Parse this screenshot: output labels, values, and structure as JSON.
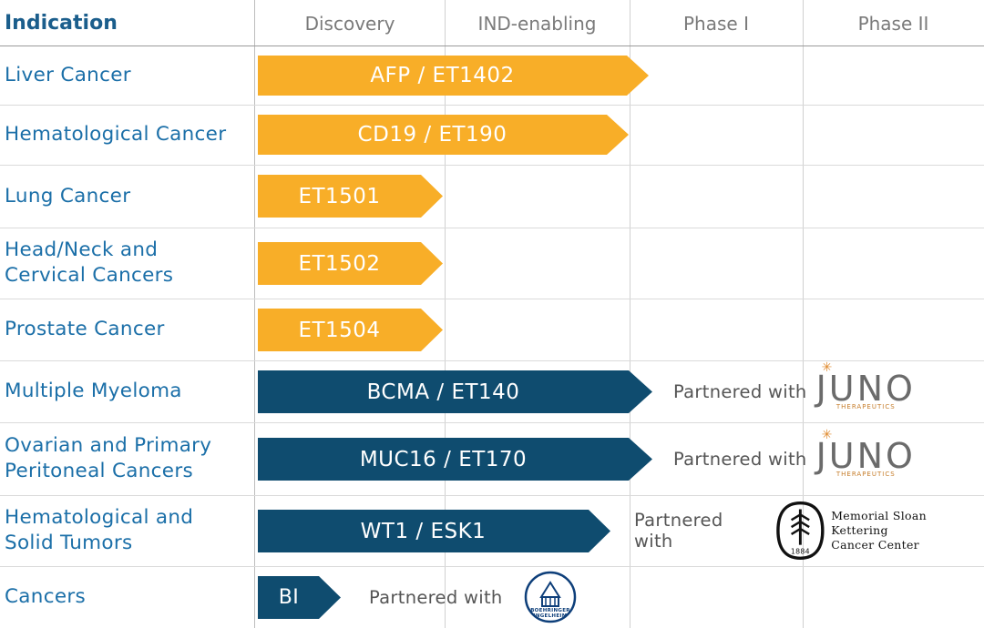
{
  "table": {
    "columns": [
      "Indication",
      "Discovery",
      "IND-enabling",
      "Phase I",
      "Phase II"
    ],
    "colors": {
      "orange": "#F8AE28",
      "navy": "#0F4C6F",
      "indication_text": "#1B6FA8",
      "header_text": "#7A7A7A",
      "grid": "#D6D6D6"
    },
    "rows": [
      {
        "indication": "Liver Cancer",
        "program": "AFP / ET1402",
        "color": "orange",
        "stage_end": "Phase I",
        "partner_text": "",
        "partner_logo": ""
      },
      {
        "indication": "Hematological Cancer",
        "program": "CD19 / ET190",
        "color": "orange",
        "stage_end": "Phase I",
        "partner_text": "",
        "partner_logo": ""
      },
      {
        "indication": "Lung Cancer",
        "program": "ET1501",
        "color": "orange",
        "stage_end": "IND-enabling",
        "partner_text": "",
        "partner_logo": ""
      },
      {
        "indication": "Head/Neck and\nCervical Cancers",
        "program": "ET1502",
        "color": "orange",
        "stage_end": "IND-enabling",
        "partner_text": "",
        "partner_logo": ""
      },
      {
        "indication": "Prostate Cancer",
        "program": "ET1504",
        "color": "orange",
        "stage_end": "IND-enabling",
        "partner_text": "",
        "partner_logo": ""
      },
      {
        "indication": "Multiple Myeloma",
        "program": "BCMA / ET140",
        "color": "navy",
        "stage_end": "Phase I",
        "partner_text": "Partnered with",
        "partner_logo": "juno-therapeutics-logo"
      },
      {
        "indication": "Ovarian and Primary\nPeritoneal Cancers",
        "program": "MUC16 / ET170",
        "color": "navy",
        "stage_end": "Phase I",
        "partner_text": "Partnered with",
        "partner_logo": "juno-therapeutics-logo"
      },
      {
        "indication": "Hematological and\nSolid Tumors",
        "program": "WT1 / ESK1",
        "color": "navy",
        "stage_end": "IND-enabling",
        "partner_text": "Partnered with",
        "partner_logo": "memorial-sloan-kettering-logo"
      },
      {
        "indication": "Cancers",
        "program": "BI",
        "color": "navy",
        "stage_end": "Discovery",
        "partner_text": "Partnered with",
        "partner_logo": "boehringer-ingelheim-logo"
      }
    ]
  },
  "logos": {
    "juno": {
      "word": "JUNO",
      "sub": "THERAPEUTICS"
    },
    "msk": {
      "line1": "Memorial Sloan Kettering",
      "line2": "Cancer Center",
      "year": "1884"
    },
    "bi": {
      "line1": "BOEHRINGER",
      "line2": "INGELHEIM"
    }
  }
}
